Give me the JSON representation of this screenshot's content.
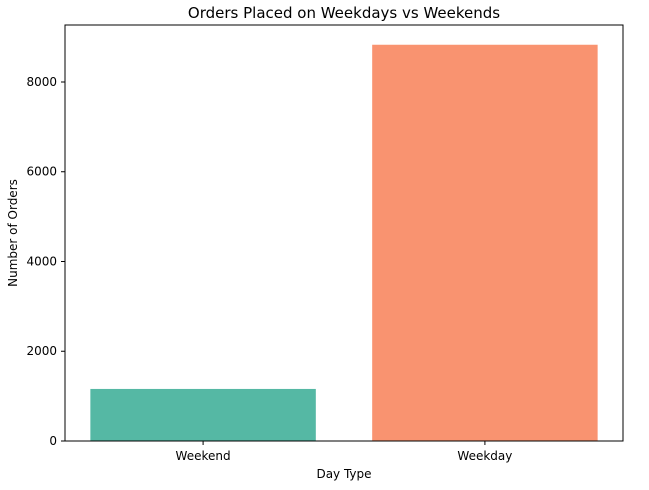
{
  "chart_data": {
    "type": "bar",
    "title": "Orders Placed on Weekdays vs Weekends",
    "xlabel": "Day Type",
    "ylabel": "Number of Orders",
    "categories": [
      "Weekend",
      "Weekday"
    ],
    "values": [
      1160,
      8830
    ],
    "colors": [
      "#55b8a4",
      "#f99370"
    ],
    "ylim": [
      0,
      9270
    ],
    "yticks": [
      0,
      2000,
      4000,
      6000,
      8000
    ],
    "ytick_labels": [
      "0",
      "2000",
      "4000",
      "6000",
      "8000"
    ],
    "grid": false,
    "legend": "none"
  }
}
